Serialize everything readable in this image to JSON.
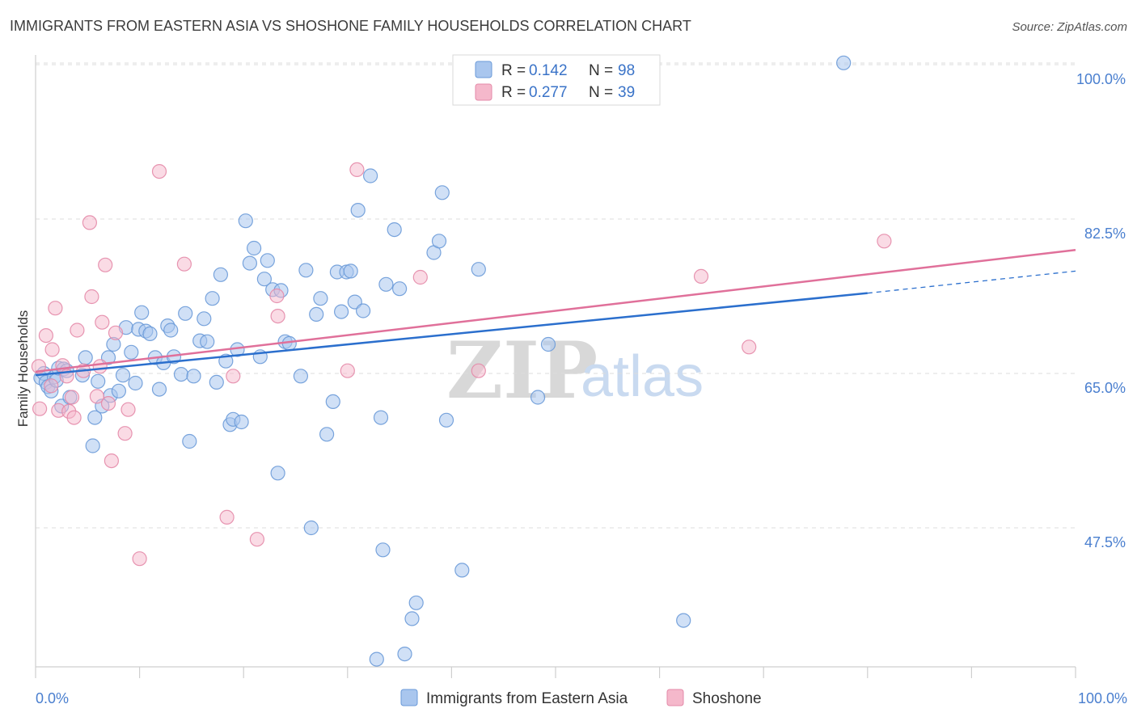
{
  "chart_data": {
    "type": "scatter",
    "title": "IMMIGRANTS FROM EASTERN ASIA VS SHOSHONE FAMILY HOUSEHOLDS CORRELATION CHART",
    "source": "Source: ZipAtlas.com",
    "xlabel": "",
    "ylabel": "Family Households",
    "xlim": [
      0,
      100
    ],
    "ylim": [
      30,
      102
    ],
    "x_tick_labels": [
      "0.0%",
      "100.0%"
    ],
    "y_ticks": [
      {
        "value": 100,
        "label": "100.0%"
      },
      {
        "value": 82.5,
        "label": "82.5%"
      },
      {
        "value": 65,
        "label": "65.0%"
      },
      {
        "value": 47.5,
        "label": "47.5%"
      }
    ],
    "legend": {
      "entries": [
        {
          "r_label": "R =",
          "r_value": "0.142",
          "n_label": "N =",
          "n_value": "98"
        },
        {
          "r_label": "R =",
          "r_value": "0.277",
          "n_label": "N =",
          "n_value": "39"
        }
      ]
    },
    "watermark": {
      "zip": "ZIP",
      "atlas": "atlas"
    },
    "colors": {
      "blue_fill": "#a9c6ee",
      "blue_stroke": "#6a9ad8",
      "blue_line": "#2b6fcd",
      "pink_fill": "#f5b8cb",
      "pink_stroke": "#e48aa8",
      "pink_line": "#e0709a"
    },
    "series": [
      {
        "name": "Immigrants from Eastern Asia",
        "color": "#a9c6ee",
        "trend": {
          "x0": 0,
          "y0": 64.8,
          "x1": 80,
          "y1": 74.1,
          "dash_to_x": 100,
          "dash_to_y": 76.6
        },
        "points": [
          {
            "x": 0.5,
            "y": 64.5
          },
          {
            "x": 0.8,
            "y": 65.0
          },
          {
            "x": 1.0,
            "y": 64.0
          },
          {
            "x": 1.2,
            "y": 63.5
          },
          {
            "x": 1.5,
            "y": 63.0
          },
          {
            "x": 1.8,
            "y": 64.6
          },
          {
            "x": 2.0,
            "y": 64.2
          },
          {
            "x": 2.2,
            "y": 65.6
          },
          {
            "x": 2.5,
            "y": 61.3
          },
          {
            "x": 2.7,
            "y": 65.5
          },
          {
            "x": 3.0,
            "y": 65.3
          },
          {
            "x": 3.3,
            "y": 62.3
          },
          {
            "x": 4.5,
            "y": 64.8
          },
          {
            "x": 4.8,
            "y": 66.8
          },
          {
            "x": 5.5,
            "y": 56.8
          },
          {
            "x": 5.7,
            "y": 60.0
          },
          {
            "x": 6.0,
            "y": 64.1
          },
          {
            "x": 6.4,
            "y": 61.3
          },
          {
            "x": 7.0,
            "y": 66.8
          },
          {
            "x": 7.2,
            "y": 62.5
          },
          {
            "x": 7.5,
            "y": 68.3
          },
          {
            "x": 8.0,
            "y": 63.0
          },
          {
            "x": 8.4,
            "y": 64.8
          },
          {
            "x": 8.7,
            "y": 70.2
          },
          {
            "x": 9.2,
            "y": 67.4
          },
          {
            "x": 9.6,
            "y": 63.9
          },
          {
            "x": 9.9,
            "y": 70.0
          },
          {
            "x": 10.2,
            "y": 71.9
          },
          {
            "x": 10.6,
            "y": 69.8
          },
          {
            "x": 11.0,
            "y": 69.5
          },
          {
            "x": 11.5,
            "y": 66.8
          },
          {
            "x": 11.9,
            "y": 63.2
          },
          {
            "x": 12.3,
            "y": 66.2
          },
          {
            "x": 12.7,
            "y": 70.4
          },
          {
            "x": 13.0,
            "y": 69.9
          },
          {
            "x": 13.3,
            "y": 66.9
          },
          {
            "x": 14.0,
            "y": 64.9
          },
          {
            "x": 14.4,
            "y": 71.8
          },
          {
            "x": 14.8,
            "y": 57.3
          },
          {
            "x": 15.2,
            "y": 64.7
          },
          {
            "x": 15.8,
            "y": 68.7
          },
          {
            "x": 16.2,
            "y": 71.2
          },
          {
            "x": 16.5,
            "y": 68.6
          },
          {
            "x": 17.0,
            "y": 73.5
          },
          {
            "x": 17.4,
            "y": 64.0
          },
          {
            "x": 17.8,
            "y": 76.2
          },
          {
            "x": 18.3,
            "y": 66.4
          },
          {
            "x": 18.7,
            "y": 59.2
          },
          {
            "x": 19.0,
            "y": 59.8
          },
          {
            "x": 19.4,
            "y": 67.7
          },
          {
            "x": 19.8,
            "y": 59.5
          },
          {
            "x": 20.2,
            "y": 82.3
          },
          {
            "x": 20.6,
            "y": 77.5
          },
          {
            "x": 21.0,
            "y": 79.2
          },
          {
            "x": 21.6,
            "y": 66.9
          },
          {
            "x": 22.0,
            "y": 75.7
          },
          {
            "x": 22.3,
            "y": 77.8
          },
          {
            "x": 22.8,
            "y": 74.5
          },
          {
            "x": 23.3,
            "y": 53.7
          },
          {
            "x": 23.6,
            "y": 74.4
          },
          {
            "x": 24.0,
            "y": 68.6
          },
          {
            "x": 24.4,
            "y": 68.4
          },
          {
            "x": 25.5,
            "y": 64.7
          },
          {
            "x": 26.0,
            "y": 76.7
          },
          {
            "x": 26.5,
            "y": 47.5
          },
          {
            "x": 27.0,
            "y": 71.7
          },
          {
            "x": 27.4,
            "y": 73.5
          },
          {
            "x": 28.0,
            "y": 58.1
          },
          {
            "x": 28.6,
            "y": 61.8
          },
          {
            "x": 29.0,
            "y": 76.5
          },
          {
            "x": 29.4,
            "y": 72.0
          },
          {
            "x": 29.9,
            "y": 76.5
          },
          {
            "x": 30.3,
            "y": 76.6
          },
          {
            "x": 30.7,
            "y": 73.1
          },
          {
            "x": 31.0,
            "y": 83.5
          },
          {
            "x": 31.5,
            "y": 72.1
          },
          {
            "x": 32.2,
            "y": 87.4
          },
          {
            "x": 32.8,
            "y": 32.6
          },
          {
            "x": 33.2,
            "y": 60.0
          },
          {
            "x": 33.4,
            "y": 45.0
          },
          {
            "x": 33.7,
            "y": 75.1
          },
          {
            "x": 34.5,
            "y": 81.3
          },
          {
            "x": 35.0,
            "y": 74.6
          },
          {
            "x": 35.5,
            "y": 33.2
          },
          {
            "x": 36.2,
            "y": 37.2
          },
          {
            "x": 36.6,
            "y": 39.0
          },
          {
            "x": 38.3,
            "y": 78.7
          },
          {
            "x": 38.8,
            "y": 80.0
          },
          {
            "x": 39.1,
            "y": 85.5
          },
          {
            "x": 39.5,
            "y": 59.7
          },
          {
            "x": 41.0,
            "y": 42.7
          },
          {
            "x": 42.6,
            "y": 76.8
          },
          {
            "x": 48.3,
            "y": 62.3
          },
          {
            "x": 49.3,
            "y": 68.3
          },
          {
            "x": 62.3,
            "y": 37.0
          },
          {
            "x": 77.7,
            "y": 100.2
          }
        ]
      },
      {
        "name": "Shoshone",
        "color": "#f5b8cb",
        "trend": {
          "x0": 0,
          "y0": 65.2,
          "x1": 100,
          "y1": 79.0
        },
        "points": [
          {
            "x": 0.3,
            "y": 65.8
          },
          {
            "x": 0.4,
            "y": 61.0
          },
          {
            "x": 1.0,
            "y": 69.3
          },
          {
            "x": 1.5,
            "y": 63.6
          },
          {
            "x": 1.6,
            "y": 67.7
          },
          {
            "x": 1.9,
            "y": 72.4
          },
          {
            "x": 2.2,
            "y": 60.8
          },
          {
            "x": 2.6,
            "y": 65.9
          },
          {
            "x": 3.0,
            "y": 64.7
          },
          {
            "x": 3.2,
            "y": 60.7
          },
          {
            "x": 3.5,
            "y": 62.3
          },
          {
            "x": 3.7,
            "y": 60.0
          },
          {
            "x": 4.0,
            "y": 69.9
          },
          {
            "x": 4.6,
            "y": 65.3
          },
          {
            "x": 5.2,
            "y": 82.1
          },
          {
            "x": 5.4,
            "y": 73.7
          },
          {
            "x": 5.9,
            "y": 62.4
          },
          {
            "x": 6.2,
            "y": 65.8
          },
          {
            "x": 6.4,
            "y": 70.8
          },
          {
            "x": 6.7,
            "y": 77.3
          },
          {
            "x": 7.0,
            "y": 61.6
          },
          {
            "x": 7.3,
            "y": 55.1
          },
          {
            "x": 7.7,
            "y": 69.6
          },
          {
            "x": 8.6,
            "y": 58.2
          },
          {
            "x": 8.9,
            "y": 60.9
          },
          {
            "x": 10.0,
            "y": 44.0
          },
          {
            "x": 11.9,
            "y": 87.9
          },
          {
            "x": 14.3,
            "y": 77.4
          },
          {
            "x": 18.4,
            "y": 48.7
          },
          {
            "x": 19.0,
            "y": 64.7
          },
          {
            "x": 21.3,
            "y": 46.2
          },
          {
            "x": 23.2,
            "y": 73.8
          },
          {
            "x": 23.3,
            "y": 71.5
          },
          {
            "x": 30.0,
            "y": 65.3
          },
          {
            "x": 30.9,
            "y": 88.1
          },
          {
            "x": 37.0,
            "y": 75.9
          },
          {
            "x": 42.6,
            "y": 65.3
          },
          {
            "x": 64.0,
            "y": 76.0
          },
          {
            "x": 68.6,
            "y": 68.0
          },
          {
            "x": 81.6,
            "y": 80.0
          }
        ]
      }
    ]
  }
}
